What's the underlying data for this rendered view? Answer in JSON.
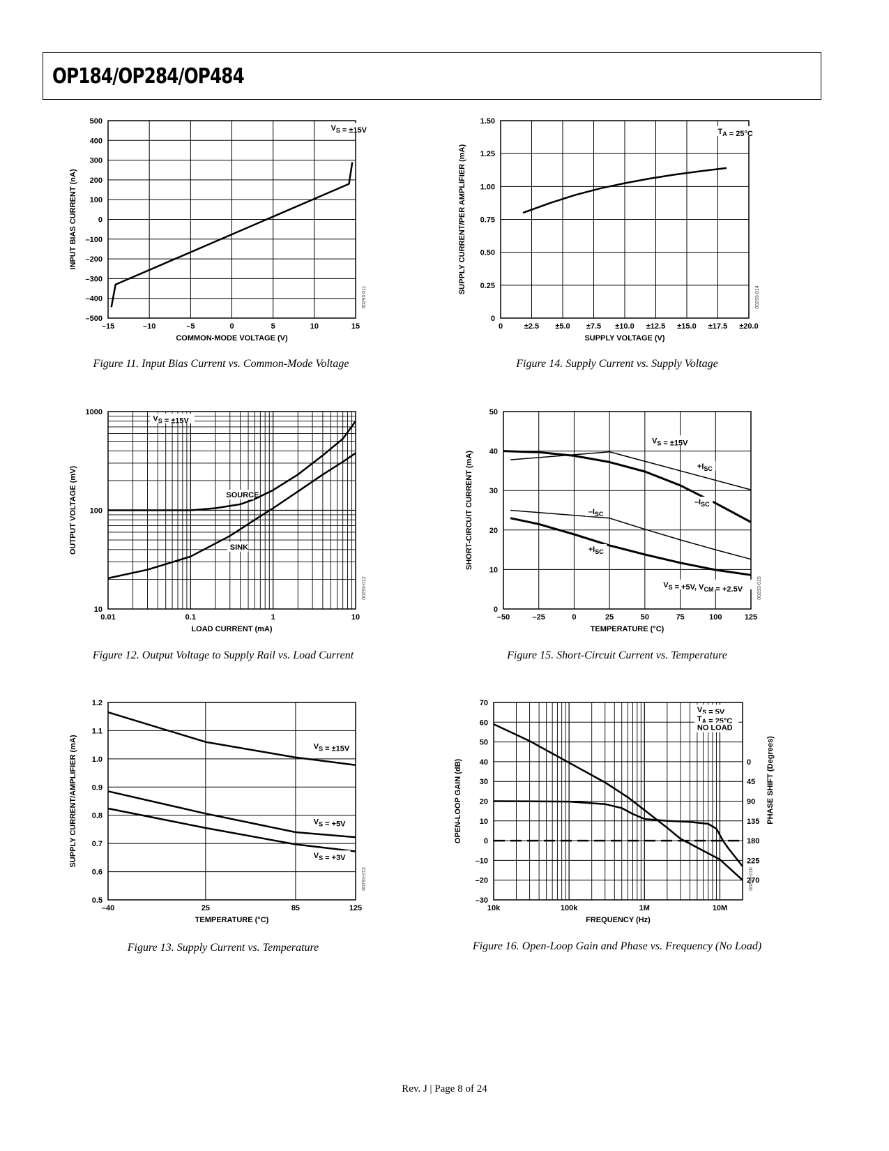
{
  "header": {
    "title": "OP184/OP284/OP484"
  },
  "footer": {
    "text": "Rev. J | Page 8 of 24"
  },
  "chart_data": [
    {
      "id": "fig11",
      "type": "line",
      "caption": "Figure 11. Input Bias Current vs. Common-Mode Voltage",
      "xlabel": "COMMON-MODE VOLTAGE (V)",
      "ylabel": "INPUT BIAS CURRENT (nA)",
      "xlim": [
        -15,
        15
      ],
      "ylim": [
        -500,
        500
      ],
      "x_ticks": [
        -15,
        -10,
        -5,
        0,
        5,
        10,
        15
      ],
      "x_tick_labels": [
        "–15",
        "–10",
        "–5",
        "0",
        "5",
        "10",
        "15"
      ],
      "y_ticks": [
        -500,
        -400,
        -300,
        -200,
        -100,
        0,
        100,
        200,
        300,
        400,
        500
      ],
      "y_tick_labels": [
        "–500",
        "–400",
        "–300",
        "–200",
        "–100",
        "0",
        "100",
        "200",
        "300",
        "400",
        "500"
      ],
      "code": "00293-011",
      "annotations": [
        {
          "text": "VS = ±15V",
          "x": 12,
          "y": 450
        }
      ],
      "series": [
        {
          "name": "IB",
          "x": [
            -14.6,
            -14.1,
            14.2,
            14.6
          ],
          "y": [
            -445,
            -330,
            180,
            290
          ]
        }
      ]
    },
    {
      "id": "fig14",
      "type": "line",
      "caption": "Figure 14. Supply Current vs. Supply Voltage",
      "xlabel": "SUPPLY VOLTAGE (V)",
      "ylabel": "SUPPLY CURRENT/PER AMPLIFIER (mA)",
      "xlim": [
        0,
        20
      ],
      "ylim": [
        0,
        1.5
      ],
      "x_ticks": [
        0,
        2.5,
        5,
        7.5,
        10,
        12.5,
        15,
        17.5,
        20
      ],
      "x_tick_labels": [
        "0",
        "±2.5",
        "±5.0",
        "±7.5",
        "±10.0",
        "±12.5",
        "±15.0",
        "±17.5",
        "±20.0"
      ],
      "y_ticks": [
        0,
        0.25,
        0.5,
        0.75,
        1.0,
        1.25,
        1.5
      ],
      "y_tick_labels": [
        "0",
        "0.25",
        "0.50",
        "0.75",
        "1.00",
        "1.25",
        "1.50"
      ],
      "code": "00293-014",
      "annotations": [
        {
          "text": "TA = 25°C",
          "x": 17.5,
          "y": 1.4
        }
      ],
      "series": [
        {
          "name": "ISY",
          "x": [
            1.8,
            4,
            6,
            8,
            10,
            12,
            14,
            16,
            18.2
          ],
          "y": [
            0.8,
            0.875,
            0.935,
            0.985,
            1.025,
            1.06,
            1.09,
            1.115,
            1.14
          ]
        }
      ]
    },
    {
      "id": "fig12",
      "type": "line",
      "caption": "Figure 12. Output Voltage to Supply Rail vs. Load Current",
      "xlabel": "LOAD CURRENT (mA)",
      "ylabel": "OUTPUT VOLTAGE (mV)",
      "x_scale": "log",
      "y_scale": "log",
      "xlim": [
        0.01,
        10
      ],
      "ylim": [
        10,
        1000
      ],
      "x_ticks": [
        0.01,
        0.1,
        1,
        10
      ],
      "x_tick_labels": [
        "0.01",
        "0.1",
        "1",
        "10"
      ],
      "y_ticks": [
        10,
        100,
        1000
      ],
      "y_tick_labels": [
        "10",
        "100",
        "1000"
      ],
      "code": "00293-012",
      "annotations": [
        {
          "text": "VS = ±15V",
          "x": 0.035,
          "y": 800
        },
        {
          "text": "SOURCE",
          "x": 0.27,
          "y": 135
        },
        {
          "text": "SINK",
          "x": 0.3,
          "y": 40
        }
      ],
      "series": [
        {
          "name": "SOURCE",
          "x": [
            0.01,
            0.1,
            0.2,
            0.4,
            0.6,
            1,
            2,
            4,
            7,
            10
          ],
          "y": [
            100,
            100,
            105,
            115,
            130,
            160,
            230,
            360,
            530,
            800
          ]
        },
        {
          "name": "SINK",
          "x": [
            0.01,
            0.03,
            0.1,
            0.3,
            0.6,
            1,
            2,
            4,
            7,
            10
          ],
          "y": [
            20.5,
            25,
            34,
            55,
            80,
            105,
            155,
            230,
            310,
            380
          ]
        }
      ]
    },
    {
      "id": "fig15",
      "type": "line",
      "caption": "Figure 15. Short-Circuit Current vs. Temperature",
      "xlabel": "TEMPERATURE (°C)",
      "ylabel": "SHORT-CIRCUIT CURRENT (mA)",
      "xlim": [
        -50,
        125
      ],
      "ylim": [
        0,
        50
      ],
      "x_ticks": [
        -50,
        -25,
        0,
        25,
        50,
        75,
        100,
        125
      ],
      "x_tick_labels": [
        "–50",
        "–25",
        "0",
        "25",
        "50",
        "75",
        "100",
        "125"
      ],
      "y_ticks": [
        0,
        10,
        20,
        30,
        40,
        50
      ],
      "y_tick_labels": [
        "0",
        "10",
        "20",
        "30",
        "40",
        "50"
      ],
      "code": "00293-015",
      "annotations": [
        {
          "text": "VS = ±15V",
          "x": 55,
          "y": 42
        },
        {
          "text": "+ISC",
          "x": 87,
          "y": 35.5
        },
        {
          "text": "–ISC",
          "x": 85,
          "y": 26.5
        },
        {
          "text": "–ISC",
          "x": 10,
          "y": 24
        },
        {
          "text": "+ISC",
          "x": 10,
          "y": 14.5
        },
        {
          "text": "VS = +5V, VCM = +2.5V",
          "x": 63,
          "y": 5.5
        }
      ],
      "series": [
        {
          "name": "+ISC (VS = ±15V)",
          "width": 3,
          "x": [
            -50,
            -25,
            0,
            25,
            50,
            75,
            100,
            125
          ],
          "y": [
            40,
            39.7,
            38.8,
            37.2,
            34.8,
            31.3,
            26.8,
            22
          ]
        },
        {
          "name": "–ISC (VS = ±15V)",
          "width": 1.5,
          "x": [
            -45,
            25,
            125
          ],
          "y": [
            37.8,
            39.8,
            30.2
          ]
        },
        {
          "name": "–ISC (VS = +5V)",
          "width": 1.5,
          "x": [
            -45,
            25,
            50,
            75,
            100,
            125
          ],
          "y": [
            25,
            23,
            20.2,
            17.5,
            15,
            12.6
          ]
        },
        {
          "name": "+ISC (VS = +5V)",
          "width": 3,
          "x": [
            -45,
            -25,
            0,
            25,
            50,
            75,
            100,
            125
          ],
          "y": [
            23,
            21.5,
            18.9,
            16.1,
            13.8,
            11.7,
            9.9,
            8.6
          ]
        }
      ]
    },
    {
      "id": "fig13",
      "type": "line",
      "caption": "Figure 13. Supply Current vs. Temperature",
      "xlabel": "TEMPERATURE (°C)",
      "ylabel": "SUPPLY CURRENT/AMPLIFIER (mA)",
      "xlim": [
        -40,
        125
      ],
      "ylim": [
        0.5,
        1.2
      ],
      "x_ticks": [
        -40,
        25,
        85,
        125
      ],
      "x_tick_labels": [
        "–40",
        "25",
        "85",
        "125"
      ],
      "y_ticks": [
        0.5,
        0.6,
        0.7,
        0.8,
        0.9,
        1.0,
        1.1,
        1.2
      ],
      "y_tick_labels": [
        "0.5",
        "0.6",
        "0.7",
        "0.8",
        "0.9",
        "1.0",
        "1.1",
        "1.2"
      ],
      "code": "00293-013",
      "annotations": [
        {
          "text": "VS = ±15V",
          "x": 97,
          "y": 1.035
        },
        {
          "text": "VS = +5V",
          "x": 97,
          "y": 0.768
        },
        {
          "text": "VS = +3V",
          "x": 97,
          "y": 0.648
        }
      ],
      "series": [
        {
          "name": "VS = ±15V",
          "x": [
            -40,
            25,
            85,
            125
          ],
          "y": [
            1.165,
            1.06,
            1.005,
            0.978
          ]
        },
        {
          "name": "VS = +5V",
          "x": [
            -40,
            25,
            85,
            125
          ],
          "y": [
            0.885,
            0.806,
            0.74,
            0.722
          ]
        },
        {
          "name": "VS = +3V",
          "x": [
            -40,
            25,
            85,
            125
          ],
          "y": [
            0.824,
            0.755,
            0.697,
            0.672
          ]
        }
      ]
    },
    {
      "id": "fig16",
      "type": "line",
      "caption": "Figure 16. Open-Loop Gain and Phase vs. Frequency (No Load)",
      "xlabel": "FREQUENCY (Hz)",
      "ylabel": "OPEN-LOOP GAIN (dB)",
      "y2label": "PHASE SHIFT (Degrees)",
      "x_scale": "log",
      "xlim": [
        10000,
        20000000
      ],
      "ylim": [
        -30,
        70
      ],
      "x_ticks": [
        10000,
        100000,
        1000000,
        10000000
      ],
      "x_tick_labels": [
        "10k",
        "100k",
        "1M",
        "10M"
      ],
      "y_ticks": [
        -30,
        -20,
        -10,
        0,
        10,
        20,
        30,
        40,
        50,
        60,
        70
      ],
      "y_tick_labels": [
        "–30",
        "–20",
        "–10",
        "0",
        "10",
        "20",
        "30",
        "40",
        "50",
        "60",
        "70"
      ],
      "y2_ticks": [
        0,
        45,
        90,
        135,
        180,
        225,
        270
      ],
      "y2_tick_labels": [
        "0",
        "45",
        "90",
        "135",
        "180",
        "225",
        "270"
      ],
      "code": "00293-016",
      "annotations": [
        {
          "text": "VS = 5V",
          "x": 5000000,
          "y": 65
        },
        {
          "text": "TA = 25°C",
          "x": 5000000,
          "y": 60.5
        },
        {
          "text": "NO LOAD",
          "x": 5000000,
          "y": 56
        }
      ],
      "series": [
        {
          "name": "GAIN",
          "x": [
            10000,
            30000,
            100000,
            300000,
            600000,
            1000000,
            2000000,
            3000000,
            5000000,
            10000000,
            20000000
          ],
          "y": [
            59,
            50.5,
            39.5,
            29.5,
            22,
            15.5,
            6.5,
            1,
            -3.5,
            -9.5,
            -20
          ]
        },
        {
          "name": "PHASE",
          "x": [
            10000,
            100000,
            300000,
            500000,
            700000,
            1000000,
            2000000,
            4000000,
            7000000,
            9000000,
            11000000,
            13000000,
            20000000
          ],
          "y": [
            20,
            19.8,
            18.5,
            16.5,
            13.5,
            11,
            10,
            9.5,
            8.5,
            6,
            0,
            -4,
            -13
          ]
        },
        {
          "name": "0 dB",
          "dashed": true,
          "x": [
            10000,
            20000000
          ],
          "y": [
            0,
            0
          ]
        }
      ]
    }
  ]
}
